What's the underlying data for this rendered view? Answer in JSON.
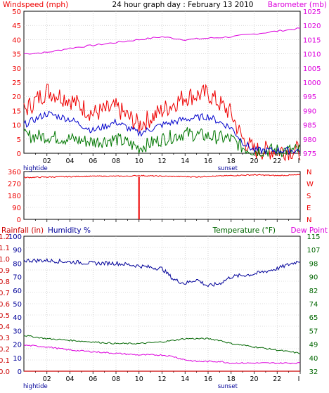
{
  "title": "24 hour graph day : February 13 2010",
  "colors": {
    "wind": "#ee0000",
    "gust_avg": "#0000cc",
    "wind_low": "#007700",
    "barometer": "#dd00dd",
    "humidity": "#000099",
    "temperature": "#006600",
    "dewpoint": "#dd00dd",
    "rain": "#cc0000"
  },
  "time_ticks": [
    "02",
    "04",
    "06",
    "08",
    "10",
    "12",
    "14",
    "16",
    "18",
    "20",
    "22",
    "I"
  ],
  "events": {
    "hightide": "hightide",
    "sunset": "sunset"
  },
  "chart_data": [
    {
      "type": "line",
      "panel": "wind_barometer",
      "labels": {
        "left": "Windspeed (mph)",
        "right": "Barometer (mb)"
      },
      "left_axis": {
        "ticks": [
          "0",
          "5",
          "10",
          "15",
          "20",
          "25",
          "30",
          "35",
          "40",
          "45",
          "50"
        ],
        "ylim": [
          0,
          50
        ]
      },
      "right_axis": {
        "ticks": [
          "975",
          "980",
          "985",
          "990",
          "995",
          "1000",
          "1005",
          "1010",
          "1015",
          "1020",
          "1025"
        ],
        "ylim": [
          975,
          1025
        ]
      },
      "x": [
        0,
        2,
        4,
        6,
        8,
        10,
        12,
        14,
        16,
        18,
        19,
        20,
        22,
        24
      ],
      "series": [
        {
          "key": "wind_high",
          "values": [
            15,
            22,
            19,
            14,
            16,
            10,
            15,
            20,
            21,
            14,
            5,
            1,
            1,
            1
          ]
        },
        {
          "key": "wind_avg",
          "values": [
            10,
            14,
            12,
            8,
            11,
            7,
            10,
            12,
            13,
            9,
            4,
            1,
            1,
            1
          ]
        },
        {
          "key": "wind_low",
          "values": [
            6,
            6,
            5,
            4,
            5,
            2,
            5,
            7,
            6,
            5,
            2,
            1,
            1,
            1
          ]
        },
        {
          "key": "barometer",
          "values": [
            1010,
            1010.5,
            1012,
            1013,
            1014,
            1015,
            1016,
            1015,
            1015.5,
            1016,
            1016.5,
            1017,
            1018,
            1019
          ]
        }
      ]
    },
    {
      "type": "line",
      "panel": "wind_direction",
      "left_axis": {
        "ticks": [
          "360",
          "270",
          "180",
          "90",
          "0"
        ],
        "ylim": [
          0,
          360
        ]
      },
      "right_labels": [
        "N",
        "W",
        "S",
        "E",
        "N"
      ],
      "x": [
        0,
        3,
        6,
        9,
        10,
        12,
        15,
        18,
        20,
        22,
        24
      ],
      "series": [
        {
          "key": "direction",
          "values": [
            315,
            320,
            325,
            325,
            330,
            325,
            320,
            330,
            335,
            330,
            335
          ]
        }
      ],
      "spike": {
        "x": 10,
        "value": 0
      }
    },
    {
      "type": "line",
      "panel": "rain_humidity_temp",
      "labels": {
        "rain": "Rainfall (in)",
        "humidity": "Humidity %",
        "temperature": "Temperature (°F)",
        "dewpoint": "Dew Point"
      },
      "rain_axis": {
        "ticks": [
          "0.0",
          "0.1",
          "0.2",
          "0.3",
          "0.4",
          "0.5",
          "0.6",
          "0.7",
          "0.8",
          "0.9",
          "1.0",
          "1.1",
          "1.2"
        ],
        "ylim": [
          0,
          1.2
        ]
      },
      "humidity_axis": {
        "ticks": [
          "0",
          "10",
          "20",
          "30",
          "40",
          "50",
          "60",
          "70",
          "80",
          "90",
          "100"
        ],
        "ylim": [
          0,
          100
        ]
      },
      "temp_axis": {
        "ticks": [
          "32",
          "40",
          "49",
          "57",
          "65",
          "74",
          "82",
          "90",
          "98",
          "107",
          "115"
        ],
        "ylim": [
          32,
          115
        ]
      },
      "x": [
        0,
        2,
        4,
        6,
        8,
        10,
        12,
        13,
        14,
        15,
        16,
        17,
        18,
        20,
        22,
        24
      ],
      "series": [
        {
          "key": "humidity",
          "values": [
            82,
            82,
            81,
            80,
            80,
            78,
            76,
            68,
            65,
            68,
            63,
            65,
            70,
            72,
            76,
            82
          ]
        },
        {
          "key": "temperature",
          "values": [
            54,
            52,
            51,
            50,
            49,
            49,
            50,
            51,
            52,
            52,
            52,
            51,
            49,
            47,
            45,
            43
          ]
        },
        {
          "key": "dewpoint",
          "values": [
            48,
            47,
            45,
            44,
            43,
            42,
            42,
            41,
            39,
            38,
            38,
            38,
            37,
            37,
            37,
            37
          ]
        },
        {
          "key": "rain",
          "values": [
            0,
            0,
            0,
            0,
            0,
            0,
            0,
            0,
            0,
            0,
            0,
            0,
            0,
            0,
            0,
            0
          ]
        }
      ]
    }
  ]
}
